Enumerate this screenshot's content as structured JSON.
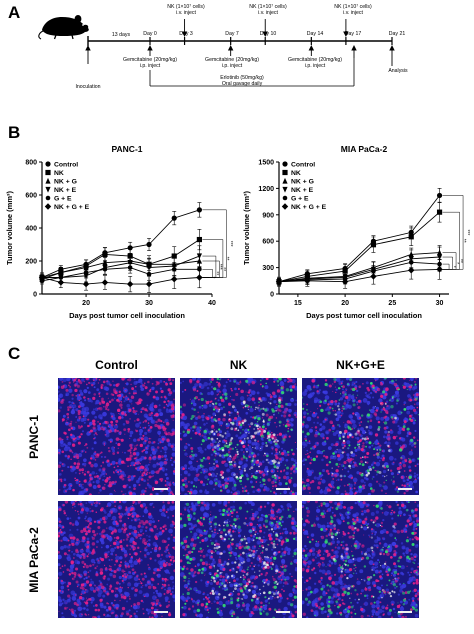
{
  "panels": {
    "a": "A",
    "b": "B",
    "c": "C"
  },
  "timeline": {
    "top_labels": [
      {
        "line1": "NK (1×10⁷ cells)",
        "line2": "i.v. inject",
        "day": 3
      },
      {
        "line1": "NK (1×10⁷ cells)",
        "line2": "i.v. inject",
        "day": 10
      },
      {
        "line1": "NK (1×10⁷ cells)",
        "line2": "i.v. inject",
        "day": 17
      }
    ],
    "days": [
      {
        "label": "Day 0",
        "day": 0
      },
      {
        "label": "Day 3",
        "day": 3
      },
      {
        "label": "Day 7",
        "day": 7
      },
      {
        "label": "Day 10",
        "day": 10
      },
      {
        "label": "Day 14",
        "day": 14
      },
      {
        "label": "Day 17",
        "day": 17
      },
      {
        "label": "Day 21",
        "day": 21
      }
    ],
    "gap_label": "13 days",
    "inoculation": "Inoculation",
    "analysis": "Analysis",
    "gemcitabine": [
      {
        "line1": "Gemcitabine (20mg/kg)",
        "line2": "i.p. inject",
        "day": 0
      },
      {
        "line1": "Gemcitabine (20mg/kg)",
        "line2": "i.p. inject",
        "day": 7
      },
      {
        "line1": "Gemcitabine (20mg/kg)",
        "line2": "i.p. inject",
        "day": 14
      }
    ],
    "erlotinib_line1": "Erlotinib (50mg/kg)",
    "erlotinib_line2": "Oral gavage daily"
  },
  "legend": [
    "Control",
    "NK",
    "NK + G",
    "NK + E",
    "G + E",
    "NK + G + E"
  ],
  "chart_data": [
    {
      "type": "line",
      "title": "PANC-1",
      "xlabel": "Days post tumor cell inoculation",
      "ylabel": "Tumor volume (mm³)",
      "xlim": [
        13,
        40
      ],
      "ylim": [
        0,
        800
      ],
      "xticks": [
        20,
        30,
        40
      ],
      "yticks": [
        0,
        200,
        400,
        600,
        800
      ],
      "x": [
        13,
        16,
        20,
        23,
        27,
        30,
        34,
        38
      ],
      "series": [
        {
          "name": "Control",
          "values": [
            100,
            150,
            180,
            250,
            280,
            300,
            460,
            510
          ]
        },
        {
          "name": "NK",
          "values": [
            100,
            130,
            170,
            240,
            230,
            180,
            230,
            330
          ]
        },
        {
          "name": "NK + G",
          "values": [
            90,
            130,
            160,
            190,
            200,
            180,
            180,
            200
          ]
        },
        {
          "name": "NK + E",
          "values": [
            100,
            100,
            110,
            160,
            190,
            160,
            170,
            230
          ]
        },
        {
          "name": "G + E",
          "values": [
            80,
            100,
            130,
            150,
            160,
            120,
            150,
            150
          ]
        },
        {
          "name": "NK + G + E",
          "values": [
            100,
            70,
            60,
            70,
            60,
            60,
            90,
            100
          ]
        }
      ],
      "significance": [
        "***",
        "**",
        "**",
        "***",
        "**",
        "*"
      ]
    },
    {
      "type": "line",
      "title": "MIA  PaCa-2",
      "xlabel": "Days post tumor cell inoculation",
      "ylabel": "Tumor volume (mm³)",
      "xlim": [
        13,
        31
      ],
      "ylim": [
        0,
        1500
      ],
      "xticks": [
        15,
        20,
        25,
        30
      ],
      "yticks": [
        0,
        300,
        600,
        900,
        1200,
        1500
      ],
      "x": [
        13,
        16,
        20,
        23,
        27,
        30
      ],
      "series": [
        {
          "name": "Control",
          "values": [
            140,
            230,
            290,
            600,
            700,
            1120
          ]
        },
        {
          "name": "NK",
          "values": [
            140,
            200,
            260,
            560,
            650,
            930
          ]
        },
        {
          "name": "NK + G",
          "values": [
            140,
            180,
            200,
            300,
            450,
            470
          ]
        },
        {
          "name": "NK + E",
          "values": [
            140,
            170,
            190,
            280,
            400,
            420
          ]
        },
        {
          "name": "G + E",
          "values": [
            140,
            160,
            170,
            260,
            360,
            340
          ]
        },
        {
          "name": "NK + G + E",
          "values": [
            140,
            150,
            140,
            200,
            270,
            280
          ]
        }
      ],
      "significance": [
        "***",
        "**",
        "**",
        "*",
        "*"
      ]
    }
  ],
  "micrographs": {
    "columns": [
      "Control",
      "NK",
      "NK+G+E"
    ],
    "rows": [
      "PANC-1",
      "MIA PaCa-2"
    ],
    "colors": {
      "bg": "#1a1880",
      "blue": "#3a3ae0",
      "magenta": "#e0208a",
      "green": "#30d870",
      "white": "#f0f0f0"
    }
  }
}
